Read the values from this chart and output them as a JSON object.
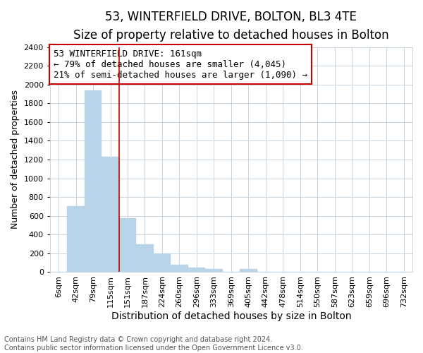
{
  "title": "53, WINTERFIELD DRIVE, BOLTON, BL3 4TE",
  "subtitle": "Size of property relative to detached houses in Bolton",
  "xlabel": "Distribution of detached houses by size in Bolton",
  "ylabel": "Number of detached properties",
  "categories": [
    "6sqm",
    "42sqm",
    "79sqm",
    "115sqm",
    "151sqm",
    "187sqm",
    "224sqm",
    "260sqm",
    "296sqm",
    "333sqm",
    "369sqm",
    "405sqm",
    "442sqm",
    "478sqm",
    "514sqm",
    "550sqm",
    "587sqm",
    "623sqm",
    "659sqm",
    "696sqm",
    "732sqm"
  ],
  "values": [
    0,
    700,
    1940,
    1230,
    575,
    300,
    200,
    80,
    45,
    30,
    0,
    30,
    5,
    2,
    1,
    1,
    0,
    0,
    0,
    0,
    0
  ],
  "bar_color": "#b8d4e8",
  "bar_edge_color": "#b8d4e8",
  "annotation_text": "53 WINTERFIELD DRIVE: 161sqm\n← 79% of detached houses are smaller (4,045)\n21% of semi-detached houses are larger (1,090) →",
  "annotation_box_color": "#ffffff",
  "annotation_box_edge_color": "#cc0000",
  "vline_color": "#cc0000",
  "vline_x": 3.5,
  "ylim": [
    0,
    2400
  ],
  "yticks": [
    0,
    200,
    400,
    600,
    800,
    1000,
    1200,
    1400,
    1600,
    1800,
    2000,
    2200,
    2400
  ],
  "footnote": "Contains HM Land Registry data © Crown copyright and database right 2024.\nContains public sector information licensed under the Open Government Licence v3.0.",
  "title_fontsize": 12,
  "subtitle_fontsize": 10,
  "xlabel_fontsize": 10,
  "ylabel_fontsize": 9,
  "tick_fontsize": 8,
  "annotation_fontsize": 9,
  "footnote_fontsize": 7,
  "bg_color": "#ffffff",
  "grid_color": "#c8d4de"
}
